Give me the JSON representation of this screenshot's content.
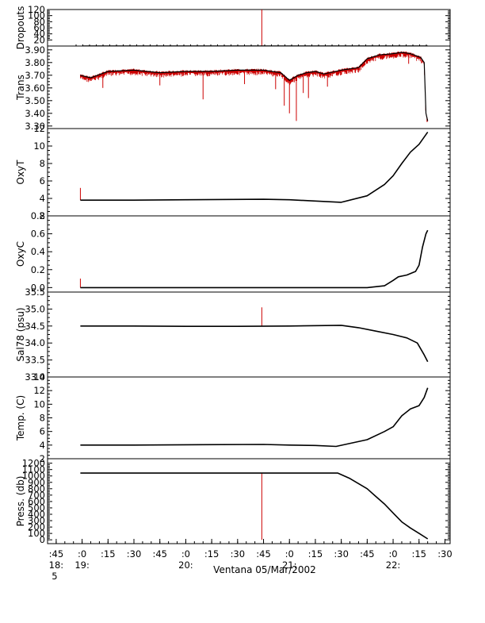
{
  "chart_data": {
    "type": "line",
    "xlabel": "Ventana 05/Mar/2002",
    "x_axis": {
      "unit": "time of day",
      "range": [
        "18:40",
        "22:33"
      ],
      "ticks": [
        {
          "time": "18:45",
          "label": ":45",
          "sub": "18:",
          "sub2": "5"
        },
        {
          "time": "19:00",
          "label": ":0",
          "sub": "19:"
        },
        {
          "time": "19:15",
          "label": ":15"
        },
        {
          "time": "19:30",
          "label": ":30"
        },
        {
          "time": "19:45",
          "label": ":45"
        },
        {
          "time": "20:00",
          "label": ":0",
          "sub": "20:"
        },
        {
          "time": "20:15",
          "label": ":15"
        },
        {
          "time": "20:30",
          "label": ":30"
        },
        {
          "time": "20:45",
          "label": ":45"
        },
        {
          "time": "21:00",
          "label": ":0",
          "sub": "21:"
        },
        {
          "time": "21:15",
          "label": ":15"
        },
        {
          "time": "21:30",
          "label": ":30"
        },
        {
          "time": "21:45",
          "label": ":45"
        },
        {
          "time": "22:00",
          "label": ":0",
          "sub": "22:"
        },
        {
          "time": "22:15",
          "label": ":15"
        },
        {
          "time": "22:30",
          "label": ":30"
        }
      ]
    },
    "panels": [
      {
        "id": "dropouts",
        "ylabel": "Dropouts",
        "ylim": [
          0,
          120
        ],
        "yticks": [
          "20",
          "40",
          "60",
          "80",
          "100",
          "120"
        ],
        "series": [
          {
            "color": "#000000",
            "x": [
              "19:00",
              "21:30",
              "22:20"
            ],
            "y": [
              0,
              0,
              0
            ]
          },
          {
            "color": "#cc0000",
            "spikes": [
              {
                "x": "20:44",
                "y0": 0,
                "y1": 120
              }
            ]
          }
        ],
        "markers": "plus-symbols-at-every-sample"
      },
      {
        "id": "trans",
        "ylabel": "Trans",
        "ylim": [
          3.28,
          3.93
        ],
        "yticks": [
          "3.30",
          "3.40",
          "3.50",
          "3.60",
          "3.70",
          "3.80",
          "3.90"
        ],
        "series": [
          {
            "color": "#000000",
            "x": [
              "18:59",
              "19:05",
              "19:15",
              "19:30",
              "19:45",
              "20:00",
              "20:15",
              "20:30",
              "20:40",
              "20:45",
              "20:50",
              "20:55",
              "21:00",
              "21:05",
              "21:10",
              "21:15",
              "21:20",
              "21:30",
              "21:40",
              "21:45",
              "21:52",
              "22:00",
              "22:05",
              "22:10",
              "22:16",
              "22:18",
              "22:19",
              "22:20"
            ],
            "y": [
              3.7,
              3.68,
              3.73,
              3.74,
              3.72,
              3.73,
              3.73,
              3.74,
              3.74,
              3.74,
              3.73,
              3.72,
              3.66,
              3.7,
              3.72,
              3.73,
              3.71,
              3.74,
              3.76,
              3.83,
              3.86,
              3.87,
              3.88,
              3.87,
              3.84,
              3.8,
              3.4,
              3.34
            ]
          }
        ],
        "noise_color": "#cc0000",
        "dips": [
          {
            "x": "19:12",
            "y": 3.6
          },
          {
            "x": "19:45",
            "y": 3.62
          },
          {
            "x": "20:10",
            "y": 3.51
          },
          {
            "x": "20:34",
            "y": 3.63
          },
          {
            "x": "20:52",
            "y": 3.59
          },
          {
            "x": "20:57",
            "y": 3.46
          },
          {
            "x": "21:00",
            "y": 3.4
          },
          {
            "x": "21:04",
            "y": 3.34
          },
          {
            "x": "21:08",
            "y": 3.56
          },
          {
            "x": "21:11",
            "y": 3.52
          },
          {
            "x": "21:22",
            "y": 3.61
          },
          {
            "x": "22:09",
            "y": 3.79
          }
        ]
      },
      {
        "id": "oxyt",
        "ylabel": "OxyT",
        "ylim": [
          2,
          12
        ],
        "yticks": [
          "2",
          "4",
          "6",
          "8",
          "10",
          "12"
        ],
        "series": [
          {
            "color": "#000000",
            "x": [
              "18:59",
              "19:30",
              "20:00",
              "20:45",
              "21:00",
              "21:15",
              "21:30",
              "21:45",
              "21:55",
              "22:00",
              "22:05",
              "22:10",
              "22:15",
              "22:20"
            ],
            "y": [
              3.8,
              3.8,
              3.85,
              3.9,
              3.85,
              3.7,
              3.55,
              4.3,
              5.6,
              6.6,
              8.0,
              9.3,
              10.2,
              11.6
            ]
          }
        ],
        "spikes": [
          {
            "x": "18:59",
            "y0": 3.8,
            "y1": 5.2
          }
        ]
      },
      {
        "id": "oxyc",
        "ylabel": "OxyC",
        "ylim": [
          -0.05,
          0.8
        ],
        "yticks": [
          "0.0",
          "0.2",
          "0.4",
          "0.6",
          "0.8"
        ],
        "series": [
          {
            "color": "#000000",
            "x": [
              "18:59",
              "19:30",
              "20:00",
              "20:45",
              "21:30",
              "21:45",
              "21:55",
              "22:00",
              "22:03",
              "22:08",
              "22:13",
              "22:15",
              "22:17",
              "22:19",
              "22:20"
            ],
            "y": [
              0.0,
              0.0,
              0.0,
              0.0,
              0.0,
              0.0,
              0.02,
              0.08,
              0.12,
              0.14,
              0.18,
              0.25,
              0.45,
              0.6,
              0.64
            ]
          }
        ],
        "spikes": [
          {
            "x": "18:59",
            "y0": 0.0,
            "y1": 0.1
          }
        ]
      },
      {
        "id": "sal78",
        "ylabel": "Sal78 (psu)",
        "ylim": [
          33.0,
          35.5
        ],
        "yticks": [
          "33.0",
          "33.5",
          "34.0",
          "34.5",
          "35.0",
          "35.5"
        ],
        "series": [
          {
            "color": "#000000",
            "x": [
              "18:59",
              "19:30",
              "20:00",
              "20:30",
              "21:00",
              "21:30",
              "21:40",
              "21:50",
              "22:00",
              "22:08",
              "22:14",
              "22:18",
              "22:20"
            ],
            "y": [
              34.5,
              34.5,
              34.49,
              34.49,
              34.5,
              34.52,
              34.45,
              34.35,
              34.25,
              34.15,
              34.0,
              33.65,
              33.45
            ]
          }
        ],
        "spikes": [
          {
            "x": "20:44",
            "y0": 34.5,
            "y1": 35.05
          }
        ]
      },
      {
        "id": "temp",
        "ylabel": "Temp. (C)",
        "ylim": [
          2,
          14
        ],
        "yticks": [
          "2",
          "4",
          "6",
          "8",
          "10",
          "12",
          "14"
        ],
        "series": [
          {
            "color": "#000000",
            "x": [
              "18:59",
              "19:30",
              "20:00",
              "20:45",
              "21:00",
              "21:15",
              "21:27",
              "21:45",
              "21:55",
              "22:00",
              "22:05",
              "22:10",
              "22:15",
              "22:18",
              "22:20"
            ],
            "y": [
              4.0,
              4.0,
              4.05,
              4.1,
              4.0,
              3.95,
              3.8,
              4.8,
              6.0,
              6.7,
              8.3,
              9.3,
              9.8,
              11.0,
              12.4
            ]
          }
        ]
      },
      {
        "id": "press",
        "ylabel": "Press. (db)",
        "ylim": [
          -60,
          1270
        ],
        "yticks": [
          "0",
          "100",
          "200",
          "300",
          "400",
          "500",
          "600",
          "700",
          "800",
          "900",
          "1000",
          "1100",
          "1200"
        ],
        "series": [
          {
            "color": "#000000",
            "x": [
              "18:59",
              "20:00",
              "21:00",
              "21:28",
              "21:35",
              "21:45",
              "21:50",
              "21:55",
              "22:00",
              "22:05",
              "22:10",
              "22:15",
              "22:20"
            ],
            "y": [
              1045,
              1045,
              1045,
              1045,
              960,
              800,
              680,
              560,
              420,
              280,
              185,
              100,
              15
            ]
          }
        ],
        "spikes": [
          {
            "x": "20:44",
            "y0": 0,
            "y1": 1045
          }
        ]
      }
    ]
  }
}
